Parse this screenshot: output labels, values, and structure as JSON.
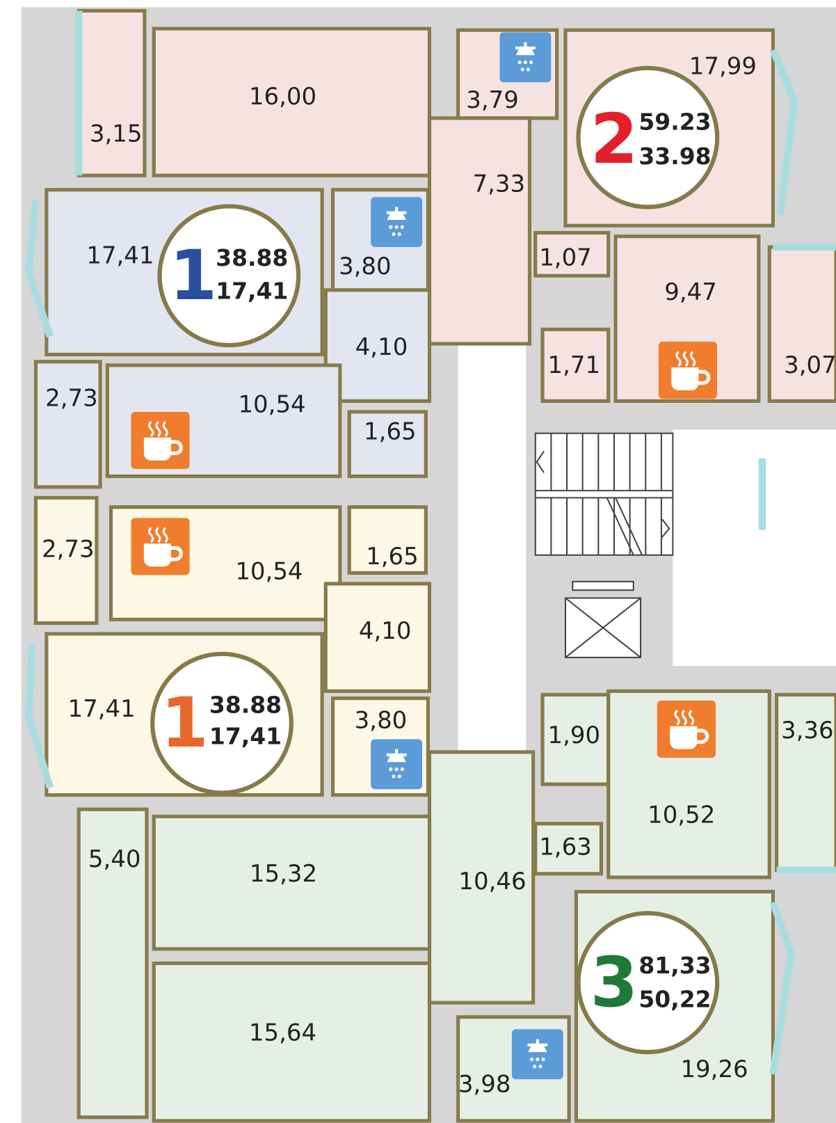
{
  "apartments": [
    {
      "number": "2",
      "total_area": "59.23",
      "living_area": "33.98",
      "rooms": [
        "16,00",
        "3,15",
        "3,79",
        "7,33",
        "17,99",
        "1,07",
        "9,47",
        "1,71",
        "3,07"
      ]
    },
    {
      "number": "1",
      "total_area": "38.88",
      "living_area": "17,41",
      "rooms": [
        "17,41",
        "3,80",
        "4,10",
        "2,73",
        "10,54",
        "1,65"
      ]
    },
    {
      "number": "1",
      "total_area": "38.88",
      "living_area": "17,41",
      "rooms": [
        "2,73",
        "10,54",
        "1,65",
        "4,10",
        "17,41",
        "3,80"
      ]
    },
    {
      "number": "3",
      "total_area": "81,33",
      "living_area": "50,22",
      "rooms": [
        "1,90",
        "3,36",
        "10,52",
        "1,63",
        "10,46",
        "5,40",
        "15,32",
        "15,64",
        "3,98",
        "19,26"
      ]
    }
  ]
}
